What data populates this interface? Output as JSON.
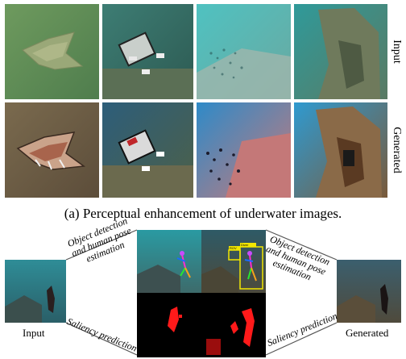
{
  "panel_a": {
    "row_labels": {
      "top": "Input",
      "bottom": "Generated"
    },
    "caption": "(a) Perceptual enhancement of underwater images."
  },
  "panel_b": {
    "input_label": "Input",
    "generated_label": "Generated",
    "task_top": [
      "Object detection",
      "and human pose",
      "estimation"
    ],
    "task_bottom": "Saliency prediction",
    "task_top_right": [
      "Object detection",
      "and human pose",
      "estimation"
    ],
    "task_bottom_right": "Saliency prediction",
    "detections": [
      {
        "label": "ROV"
      },
      {
        "label": "Diver"
      }
    ]
  },
  "colors": {
    "bbox_yellow": "#f2e600",
    "saliency_red": "#ff1a1a",
    "connector_line": "#555555"
  }
}
